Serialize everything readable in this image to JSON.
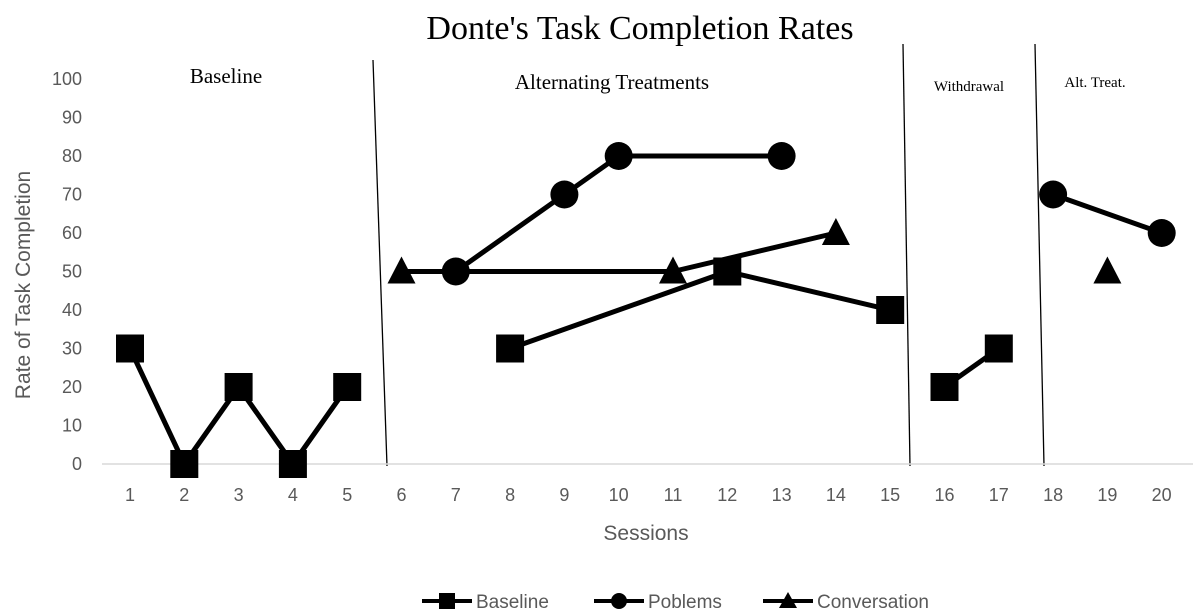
{
  "chart_data": {
    "type": "line",
    "title": "Donte's Task Completion Rates",
    "xlabel": "Sessions",
    "ylabel": "Rate of Task Completion",
    "x": [
      1,
      2,
      3,
      4,
      5,
      6,
      7,
      8,
      9,
      10,
      11,
      12,
      13,
      14,
      15,
      16,
      17,
      18,
      19,
      20
    ],
    "ylim": [
      0,
      100
    ],
    "yticks": [
      0,
      10,
      20,
      30,
      40,
      50,
      60,
      70,
      80,
      90,
      100
    ],
    "grid": false,
    "legend_position": "bottom",
    "phases": [
      {
        "label": "Baseline"
      },
      {
        "label": "Alternating Treatments"
      },
      {
        "label": "Withdrawal"
      },
      {
        "label": "Alt. Treat."
      }
    ],
    "series": [
      {
        "name": "Baseline",
        "marker": "square",
        "color": "#000000",
        "values": [
          30,
          0,
          20,
          0,
          20,
          null,
          null,
          30,
          null,
          null,
          null,
          50,
          null,
          null,
          40,
          20,
          30,
          null,
          null,
          null
        ],
        "segments": [
          [
            1,
            2,
            3,
            4,
            5
          ],
          [
            8,
            12,
            15
          ],
          [
            16,
            17
          ]
        ]
      },
      {
        "name": "Poblems",
        "marker": "circle",
        "color": "#000000",
        "values": [
          null,
          null,
          null,
          null,
          null,
          null,
          50,
          null,
          70,
          80,
          null,
          null,
          80,
          null,
          null,
          null,
          null,
          70,
          null,
          60
        ],
        "segments": [
          [
            7,
            9,
            10,
            13
          ],
          [
            18,
            20
          ]
        ]
      },
      {
        "name": "Conversation",
        "marker": "triangle",
        "color": "#000000",
        "values": [
          null,
          null,
          null,
          null,
          null,
          50,
          null,
          null,
          null,
          null,
          50,
          null,
          null,
          60,
          null,
          null,
          null,
          null,
          50,
          null
        ],
        "segments": [
          [
            6,
            11,
            14
          ],
          [
            19
          ]
        ]
      }
    ]
  }
}
